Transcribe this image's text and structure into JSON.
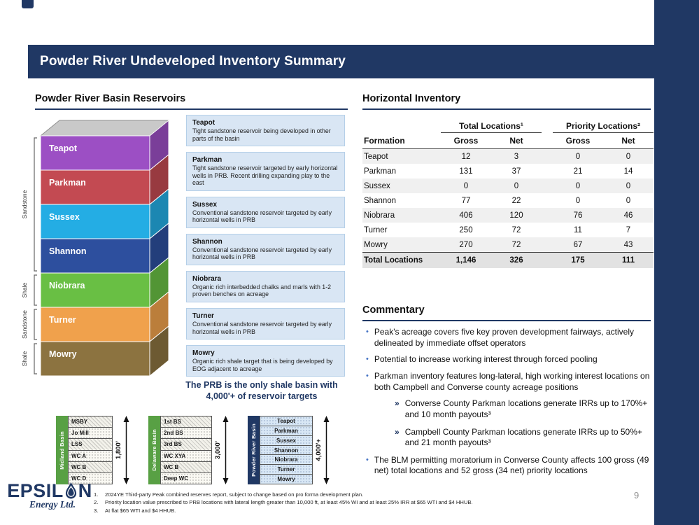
{
  "slide": {
    "title": "Powder River Undeveloped Inventory Summary",
    "page_number": "9"
  },
  "theme": {
    "navy": "#203864",
    "callout_bg": "#d9e6f4",
    "green": "#58a044",
    "bullet_blue": "#4472c4",
    "top_face_gray": "#c9c9c9"
  },
  "reservoirs": {
    "heading": "Powder River Basin Reservoirs",
    "layers": [
      {
        "name": "Teapot",
        "color": "#9c4fc4",
        "callout": "Tight sandstone reservoir being developed in other parts of the basin"
      },
      {
        "name": "Parkman",
        "color": "#c34a52",
        "callout": "Tight sandstone reservoir targeted by early horizontal wells in PRB. Recent drilling expanding play to the east"
      },
      {
        "name": "Sussex",
        "color": "#24ade4",
        "callout": "Conventional sandstone reservoir targeted by early horizontal wells in PRB"
      },
      {
        "name": "Shannon",
        "color": "#2d4f9e",
        "callout": "Conventional sandstone reservoir targeted by early horizontal wells in PRB"
      },
      {
        "name": "Niobrara",
        "color": "#69bf44",
        "callout": "Organic rich interbedded chalks and marls with 1-2 proven benches on acreage"
      },
      {
        "name": "Turner",
        "color": "#f0a14c",
        "callout": "Conventional sandstone reservoir targeted by early horizontal wells in PRB"
      },
      {
        "name": "Mowry",
        "color": "#8c7340",
        "callout": "Organic rich shale target that is being developed by EOG adjacent to acreage"
      }
    ],
    "side_groups": [
      {
        "label": "Sandstone",
        "from": 0,
        "to": 3
      },
      {
        "label": "Shale",
        "from": 4,
        "to": 4
      },
      {
        "label": "Sandstone",
        "from": 5,
        "to": 5
      },
      {
        "label": "Shale",
        "from": 6,
        "to": 6
      }
    ],
    "tagline": "The PRB is the only shale basin with 4,000'+ of reservoir targets"
  },
  "basin_comparison": {
    "columns": [
      {
        "basin": "Midland Basin",
        "label_color": "#58a044",
        "rows": [
          "MSBY",
          "Jo Mill",
          "LSS",
          "WC A",
          "WC B",
          "WC D"
        ],
        "height_label": "1,800'"
      },
      {
        "basin": "Delaware Basin",
        "label_color": "#58a044",
        "rows": [
          "1st BS",
          "2nd BS",
          "3rd BS",
          "WC XYA",
          "WC B",
          "Deep WC"
        ],
        "height_label": "3,000'"
      },
      {
        "basin": "Powder River Basin",
        "label_color": "#203864",
        "rows": [
          "Teapot",
          "Parkman",
          "Sussex",
          "Shannon",
          "Niobrara",
          "Turner",
          "Mowry"
        ],
        "height_label": "4,000'+"
      }
    ]
  },
  "inventory": {
    "heading": "Horizontal Inventory",
    "group_headers": [
      "Total Locations¹",
      "Priority Locations²"
    ],
    "columns": [
      "Formation",
      "Gross",
      "Net",
      "Gross",
      "Net"
    ],
    "rows": [
      {
        "formation": "Teapot",
        "values": [
          "12",
          "3",
          "0",
          "0"
        ]
      },
      {
        "formation": "Parkman",
        "values": [
          "131",
          "37",
          "21",
          "14"
        ]
      },
      {
        "formation": "Sussex",
        "values": [
          "0",
          "0",
          "0",
          "0"
        ]
      },
      {
        "formation": "Shannon",
        "values": [
          "77",
          "22",
          "0",
          "0"
        ]
      },
      {
        "formation": "Niobrara",
        "values": [
          "406",
          "120",
          "76",
          "46"
        ]
      },
      {
        "formation": "Turner",
        "values": [
          "250",
          "72",
          "11",
          "7"
        ]
      },
      {
        "formation": "Mowry",
        "values": [
          "270",
          "72",
          "67",
          "43"
        ]
      }
    ],
    "total_row": {
      "formation": "Total Locations",
      "values": [
        "1,146",
        "326",
        "175",
        "111"
      ]
    }
  },
  "commentary": {
    "heading": "Commentary",
    "bullets": [
      {
        "level": 1,
        "text": "Peak's acreage covers five key proven development fairways, actively delineated by immediate offset operators"
      },
      {
        "level": 1,
        "text": "Potential to increase working interest through forced pooling"
      },
      {
        "level": 1,
        "text": "Parkman inventory features long-lateral, high working interest locations on both Campbell and Converse county acreage positions"
      },
      {
        "level": 2,
        "text": "Converse County Parkman locations generate IRRs up to 170%+ and 10 month payouts³"
      },
      {
        "level": 2,
        "text": "Campbell County Parkman locations generate IRRs up to 50%+ and 21 month payouts³"
      },
      {
        "level": 1,
        "text": "The BLM permitting moratorium in Converse County affects 100 gross (49 net) total locations and 52 gross (34 net) priority locations"
      }
    ]
  },
  "footer": {
    "logo_pre": "EPSIL",
    "logo_post": "N",
    "logo_subtext": "Energy Ltd.",
    "footnotes": [
      "2024YE Third-party Peak combined reserves report, subject to change based on pro forma development plan.",
      "Priority location value prescribed to PRB locations with lateral length greater than 10,000 ft, at least 45% WI and at least 25% IRR at $65 WTI and $4 HHUB.",
      "At flat $65 WTI and $4 HHUB."
    ]
  }
}
